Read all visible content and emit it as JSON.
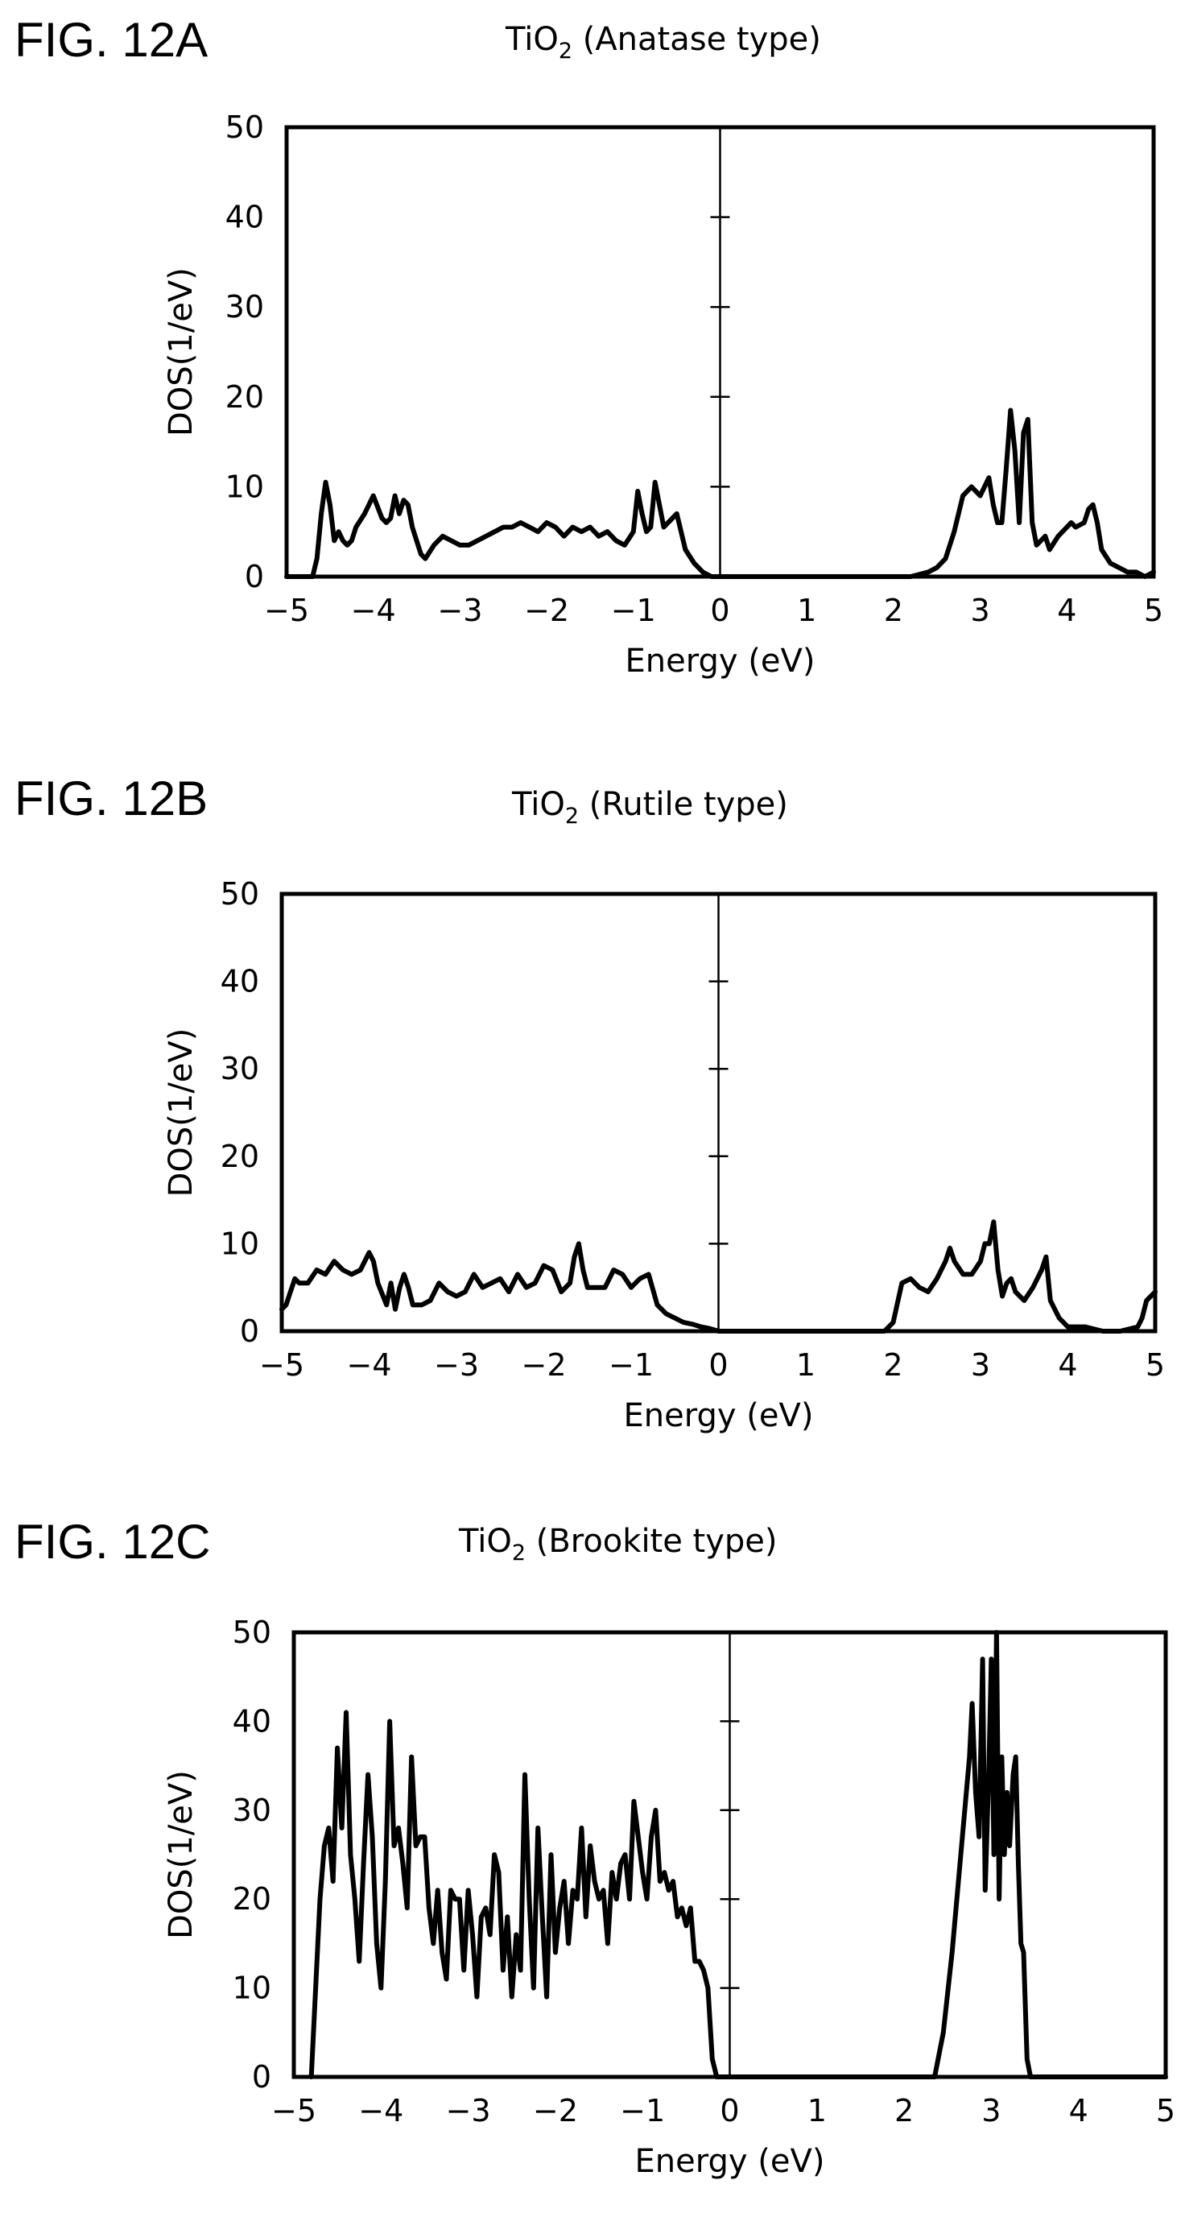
{
  "panels": [
    {
      "fig_label": "FIG. 12A",
      "title_main": "TiO",
      "title_sub": "2",
      "title_rest": " (Anatase type)"
    },
    {
      "fig_label": "FIG. 12B",
      "title_main": "TiO",
      "title_sub": "2",
      "title_rest": " (Rutile type)"
    },
    {
      "fig_label": "FIG. 12C",
      "title_main": "TiO",
      "title_sub": "2",
      "title_rest": " (Brookite type)"
    }
  ],
  "chart_data": [
    {
      "type": "line",
      "title": "TiO2 (Anatase type)",
      "xlabel": "Energy (eV)",
      "ylabel": "DOS(1/eV)",
      "xlim": [
        -5,
        5
      ],
      "ylim": [
        0,
        50
      ],
      "xticks": [
        -5,
        -4,
        -3,
        -2,
        -1,
        0,
        1,
        2,
        3,
        4,
        5
      ],
      "yticks": [
        0,
        10,
        20,
        30,
        40,
        50
      ],
      "zero_line": 0,
      "grid": false,
      "series": [
        {
          "x": [
            -5,
            -4.7,
            -4.65,
            -4.6,
            -4.55,
            -4.5,
            -4.45,
            -4.4,
            -4.35,
            -4.3,
            -4.25,
            -4.2,
            -4.1,
            -4.0,
            -3.9,
            -3.85,
            -3.8,
            -3.75,
            -3.7,
            -3.65,
            -3.6,
            -3.55,
            -3.5,
            -3.45,
            -3.4,
            -3.3,
            -3.2,
            -3.1,
            -3.0,
            -2.9,
            -2.8,
            -2.7,
            -2.6,
            -2.5,
            -2.4,
            -2.3,
            -2.2,
            -2.1,
            -2.0,
            -1.9,
            -1.8,
            -1.7,
            -1.6,
            -1.5,
            -1.4,
            -1.3,
            -1.2,
            -1.1,
            -1.0,
            -0.95,
            -0.9,
            -0.85,
            -0.8,
            -0.75,
            -0.7,
            -0.65,
            -0.6,
            -0.5,
            -0.4,
            -0.3,
            -0.2,
            -0.1,
            0.0,
            0.5,
            1.0,
            1.5,
            2.0,
            2.2,
            2.4,
            2.5,
            2.6,
            2.7,
            2.8,
            2.9,
            3.0,
            3.1,
            3.15,
            3.2,
            3.25,
            3.3,
            3.35,
            3.4,
            3.45,
            3.5,
            3.55,
            3.6,
            3.65,
            3.7,
            3.75,
            3.8,
            3.9,
            4.0,
            4.05,
            4.1,
            4.2,
            4.25,
            4.3,
            4.35,
            4.4,
            4.5,
            4.6,
            4.7,
            4.8,
            4.9,
            5.0
          ],
          "y": [
            0,
            0,
            2,
            7,
            10.5,
            8,
            4,
            5,
            4,
            3.5,
            4,
            5.5,
            7,
            9,
            6.5,
            6,
            6.5,
            9,
            7,
            8.5,
            8,
            5.5,
            4,
            2.5,
            2,
            3.5,
            4.5,
            4,
            3.5,
            3.5,
            4,
            4.5,
            5,
            5.5,
            5.5,
            6,
            5.5,
            5,
            6,
            5.5,
            4.5,
            5.5,
            5,
            5.5,
            4.5,
            5,
            4,
            3.5,
            5,
            9.5,
            7,
            5,
            5.5,
            10.5,
            8,
            5.5,
            6,
            7,
            3,
            1.5,
            0.5,
            0,
            0,
            0,
            0,
            0,
            0,
            0,
            0.5,
            1,
            2,
            5,
            9,
            10,
            9,
            11,
            8,
            6,
            6,
            12,
            18.5,
            14,
            6,
            16,
            17.5,
            6,
            3.5,
            4,
            4.5,
            3,
            4.5,
            5.5,
            6,
            5.5,
            6,
            7.5,
            8,
            6,
            3,
            1.5,
            1,
            0.5,
            0.5,
            0,
            0.5
          ]
        }
      ]
    },
    {
      "type": "line",
      "title": "TiO2 (Rutile type)",
      "xlabel": "Energy (eV)",
      "ylabel": "DOS(1/eV)",
      "xlim": [
        -5,
        5
      ],
      "ylim": [
        0,
        50
      ],
      "xticks": [
        -5,
        -4,
        -3,
        -2,
        -1,
        0,
        1,
        2,
        3,
        4,
        5
      ],
      "yticks": [
        0,
        10,
        20,
        30,
        40,
        50
      ],
      "zero_line": 0,
      "grid": false,
      "series": [
        {
          "x": [
            -5,
            -4.95,
            -4.9,
            -4.85,
            -4.8,
            -4.7,
            -4.6,
            -4.5,
            -4.4,
            -4.3,
            -4.2,
            -4.1,
            -4.0,
            -3.95,
            -3.9,
            -3.8,
            -3.75,
            -3.7,
            -3.65,
            -3.6,
            -3.55,
            -3.5,
            -3.4,
            -3.3,
            -3.2,
            -3.1,
            -3.0,
            -2.9,
            -2.8,
            -2.7,
            -2.6,
            -2.5,
            -2.4,
            -2.3,
            -2.2,
            -2.1,
            -2.0,
            -1.9,
            -1.8,
            -1.7,
            -1.65,
            -1.6,
            -1.55,
            -1.5,
            -1.4,
            -1.3,
            -1.2,
            -1.1,
            -1.0,
            -0.9,
            -0.8,
            -0.7,
            -0.6,
            -0.5,
            -0.4,
            -0.3,
            -0.2,
            -0.1,
            0.0,
            0.5,
            1.0,
            1.5,
            1.9,
            2.0,
            2.1,
            2.2,
            2.3,
            2.4,
            2.5,
            2.6,
            2.65,
            2.7,
            2.8,
            2.9,
            3.0,
            3.05,
            3.1,
            3.15,
            3.2,
            3.25,
            3.3,
            3.35,
            3.4,
            3.5,
            3.6,
            3.7,
            3.75,
            3.8,
            3.9,
            4.0,
            4.2,
            4.4,
            4.6,
            4.8,
            4.85,
            4.9,
            5.0
          ],
          "y": [
            2.5,
            3,
            4.5,
            6,
            5.5,
            5.5,
            7,
            6.5,
            8,
            7,
            6.5,
            7,
            9,
            8,
            5.5,
            3,
            5.5,
            2.5,
            5,
            6.5,
            5,
            3,
            3,
            3.5,
            5.5,
            4.5,
            4,
            4.5,
            6.5,
            5,
            5.5,
            6,
            4.5,
            6.5,
            5,
            5.5,
            7.5,
            7,
            4.5,
            5.5,
            8.5,
            10,
            7,
            5,
            5,
            5,
            7,
            6.5,
            5,
            6,
            6.5,
            3,
            2,
            1.5,
            1,
            0.8,
            0.5,
            0.3,
            0,
            0,
            0,
            0,
            0,
            1,
            5.5,
            6,
            5,
            4.5,
            6,
            8,
            9.5,
            8,
            6.5,
            6.5,
            8,
            10,
            10,
            12.5,
            7,
            4,
            5.5,
            6,
            4.5,
            3.5,
            5,
            7,
            8.5,
            3.5,
            1.5,
            0.5,
            0.5,
            0,
            0,
            0.5,
            1.5,
            3.5,
            4.5
          ]
        }
      ]
    },
    {
      "type": "line",
      "title": "TiO2 (Brookite type)",
      "xlabel": "Energy (eV)",
      "ylabel": "DOS(1/eV)",
      "xlim": [
        -5,
        5
      ],
      "ylim": [
        0,
        50
      ],
      "xticks": [
        -5,
        -4,
        -3,
        -2,
        -1,
        0,
        1,
        2,
        3,
        4,
        5
      ],
      "yticks": [
        0,
        10,
        20,
        30,
        40,
        50
      ],
      "zero_line": 0,
      "grid": false,
      "series": [
        {
          "x": [
            -4.8,
            -4.75,
            -4.7,
            -4.65,
            -4.6,
            -4.55,
            -4.5,
            -4.45,
            -4.4,
            -4.35,
            -4.3,
            -4.25,
            -4.2,
            -4.15,
            -4.1,
            -4.05,
            -4.0,
            -3.95,
            -3.9,
            -3.85,
            -3.8,
            -3.75,
            -3.7,
            -3.65,
            -3.6,
            -3.55,
            -3.5,
            -3.45,
            -3.4,
            -3.35,
            -3.3,
            -3.25,
            -3.2,
            -3.15,
            -3.1,
            -3.05,
            -3.0,
            -2.95,
            -2.9,
            -2.85,
            -2.8,
            -2.75,
            -2.7,
            -2.65,
            -2.6,
            -2.55,
            -2.5,
            -2.45,
            -2.4,
            -2.35,
            -2.3,
            -2.25,
            -2.2,
            -2.15,
            -2.1,
            -2.05,
            -2.0,
            -1.95,
            -1.9,
            -1.85,
            -1.8,
            -1.75,
            -1.7,
            -1.65,
            -1.6,
            -1.55,
            -1.5,
            -1.45,
            -1.4,
            -1.35,
            -1.3,
            -1.25,
            -1.2,
            -1.15,
            -1.1,
            -1.05,
            -1.0,
            -0.95,
            -0.9,
            -0.85,
            -0.8,
            -0.75,
            -0.7,
            -0.65,
            -0.6,
            -0.55,
            -0.5,
            -0.45,
            -0.4,
            -0.35,
            -0.3,
            -0.25,
            -0.2,
            -0.15,
            -0.1,
            -0.05,
            0.0,
            0.5,
            1.0,
            1.5,
            2.0,
            2.35,
            2.45,
            2.55,
            2.65,
            2.75,
            2.78,
            2.82,
            2.86,
            2.9,
            2.93,
            2.97,
            3.0,
            3.03,
            3.06,
            3.09,
            3.12,
            3.15,
            3.18,
            3.21,
            3.25,
            3.28,
            3.31,
            3.34,
            3.37,
            3.41,
            3.45,
            3.5,
            3.6,
            4.0,
            4.5,
            5.0
          ],
          "y": [
            0,
            10,
            20,
            26,
            28,
            22,
            37,
            28,
            41,
            25,
            20,
            13,
            24,
            34,
            27,
            15,
            10,
            22,
            40,
            26,
            28,
            24,
            19,
            36,
            26,
            27,
            27,
            19,
            15,
            21,
            14,
            11,
            21,
            20,
            20,
            12,
            21,
            16,
            9,
            18,
            19,
            16,
            25,
            23,
            12,
            18,
            9,
            16,
            12,
            34,
            20,
            10,
            28,
            18,
            9,
            25,
            14,
            19,
            22,
            15,
            21,
            20,
            28,
            18,
            26,
            22,
            20,
            21,
            15,
            23,
            20,
            24,
            25,
            20,
            31,
            27,
            23,
            20,
            27,
            30,
            22,
            23,
            21,
            22,
            18,
            19,
            17,
            19,
            13,
            13,
            12,
            10,
            2,
            0,
            0,
            0,
            0,
            0,
            0,
            0,
            0,
            0,
            5,
            14,
            25,
            36,
            42,
            32,
            27,
            47,
            21,
            34,
            47,
            25,
            50,
            20,
            36,
            25,
            32,
            26,
            34,
            36,
            24,
            15,
            14,
            2,
            0,
            0,
            0,
            0,
            0,
            0
          ]
        }
      ]
    }
  ]
}
